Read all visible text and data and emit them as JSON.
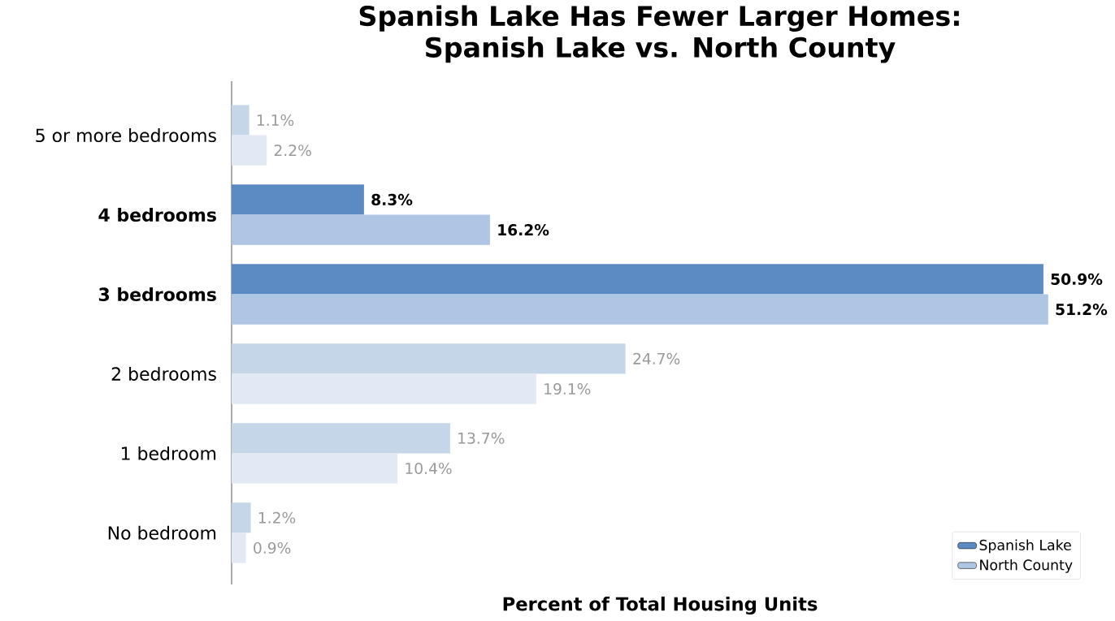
{
  "chart_data": {
    "type": "bar",
    "orientation": "horizontal",
    "title": "Spanish Lake Has Fewer Larger Homes:\nSpanish Lake vs. North County",
    "xlabel": "Percent of Total Housing Units",
    "categories": [
      "5 or more bedrooms",
      "4 bedrooms",
      "3 bedrooms",
      "2 bedrooms",
      "1 bedroom",
      "No bedroom"
    ],
    "series": [
      {
        "name": "Spanish Lake",
        "color": "#5b8bc2",
        "colors": [
          "#c5d6e8",
          "#5b8bc2",
          "#5b8bc2",
          "#c5d6e8",
          "#c5d6e8",
          "#c5d6e8"
        ],
        "values": [
          1.1,
          8.3,
          50.9,
          24.7,
          13.7,
          1.2
        ],
        "value_labels": [
          "1.1%",
          "8.3%",
          "50.9%",
          "24.7%",
          "13.7%",
          "1.2%"
        ]
      },
      {
        "name": "North County",
        "color": "#aec5e3",
        "colors": [
          "#e2e9f5",
          "#aec5e3",
          "#aec5e3",
          "#e2e9f5",
          "#e2e9f5",
          "#e2e9f5"
        ],
        "values": [
          2.2,
          16.2,
          51.2,
          19.1,
          10.4,
          0.9
        ],
        "value_labels": [
          "2.2%",
          "16.2%",
          "51.2%",
          "19.1%",
          "10.4%",
          "0.9%"
        ]
      }
    ],
    "legend": "bottom right"
  }
}
